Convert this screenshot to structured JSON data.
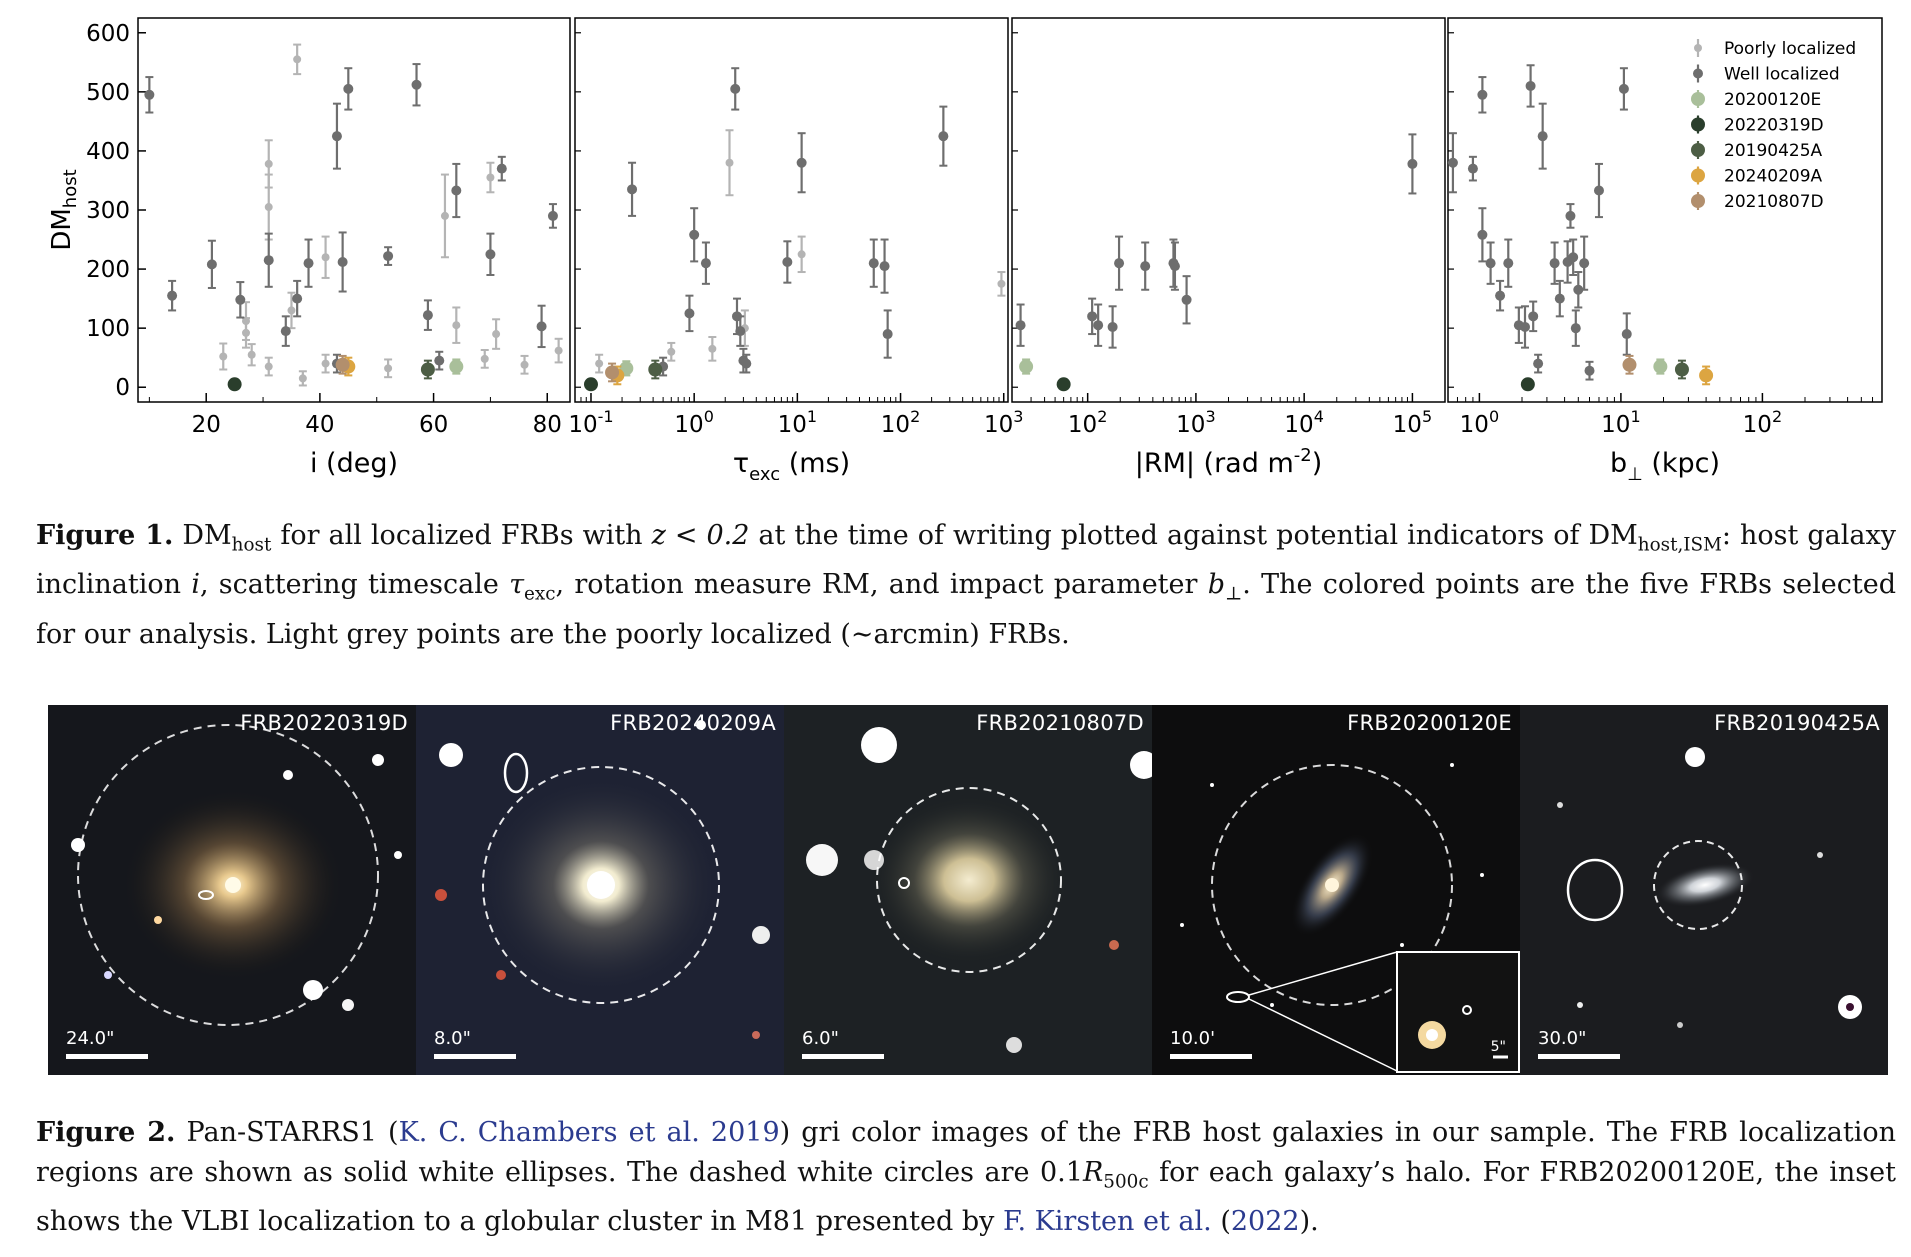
{
  "figure1": {
    "caption_label": "Figure 1.",
    "caption_text_1": "DM",
    "caption_sub_1": "host",
    "caption_text_2": " for all localized FRBs with ",
    "caption_math_1": "z < 0.2",
    "caption_text_3": " at the time of writing plotted against potential indicators of DM",
    "caption_sub_2": "host,ISM",
    "caption_text_4": ": host galaxy inclination ",
    "caption_math_2": "i",
    "caption_text_5": ", scattering timescale ",
    "caption_math_3": "τ",
    "caption_sub_3": "exc",
    "caption_text_6": ", rotation measure RM, and impact parameter ",
    "caption_math_4": "b",
    "caption_sub_4": "⊥",
    "caption_text_7": ". The colored points are the five FRBs selected for our analysis. Light grey points are the poorly localized (∼arcmin) FRBs."
  },
  "figure2": {
    "caption_label": "Figure 2.",
    "caption_text_1": "Pan-STARRS1 (",
    "citation_1": "K. C. Chambers et al. 2019",
    "caption_text_2": ") gri color images of the FRB host galaxies in our sample. The FRB localization regions are shown as solid white ellipses. The dashed white circles are 0.1",
    "caption_math_1": "R",
    "caption_sub_1": "500c",
    "caption_text_3": " for each galaxy’s halo. For FRB20200120E, the inset shows the VLBI localization to a globular cluster in M81 presented by ",
    "citation_2": "F. Kirsten et al.",
    "citation_2_year_open": " (",
    "citation_2_year": "2022",
    "citation_2_year_close": ").",
    "panels": [
      {
        "title": "FRB20220319D",
        "scale": "24.0\""
      },
      {
        "title": "FRB20240209A",
        "scale": "8.0\""
      },
      {
        "title": "FRB20210807D",
        "scale": "6.0\""
      },
      {
        "title": "FRB20200120E",
        "scale": "10.0'",
        "inset_scale": "5\""
      },
      {
        "title": "FRB20190425A",
        "scale": "30.0\""
      }
    ]
  },
  "colors": {
    "poor": "#b4b4b4",
    "well": "#6e6e6e",
    "c20200120E": "#a9bf9a",
    "c20220319D": "#2a3e2c",
    "c20190425A": "#4d5e45",
    "c20240209A": "#dca541",
    "c20210807D": "#b28f6d"
  },
  "chart_data": [
    {
      "type": "scatter",
      "xlabel": "i (deg)",
      "ylabel": "DM_host",
      "xscale": "linear",
      "xlim": [
        8,
        84
      ],
      "ylim": [
        -25,
        625
      ],
      "xticks": [
        20,
        40,
        60,
        80
      ],
      "yticks": [
        0,
        100,
        200,
        300,
        400,
        500,
        600
      ],
      "series": [
        {
          "name": "Poorly localized",
          "points": [
            [
              23,
              52,
              22
            ],
            [
              27,
              92,
              25
            ],
            [
              27,
              112,
              32
            ],
            [
              28,
              55,
              18
            ],
            [
              31,
              35,
              15
            ],
            [
              31,
              305,
              55
            ],
            [
              31,
              378,
              40
            ],
            [
              35,
              130,
              30
            ],
            [
              36,
              555,
              25
            ],
            [
              37,
              15,
              12
            ],
            [
              41,
              220,
              35
            ],
            [
              41,
              40,
              15
            ],
            [
              52,
              32,
              15
            ],
            [
              62,
              290,
              70
            ],
            [
              64,
              105,
              30
            ],
            [
              69,
              48,
              15
            ],
            [
              70,
              355,
              25
            ],
            [
              71,
              90,
              25
            ],
            [
              76,
              38,
              15
            ],
            [
              82,
              62,
              20
            ]
          ]
        },
        {
          "name": "Well localized",
          "points": [
            [
              10,
              495,
              30
            ],
            [
              14,
              155,
              25
            ],
            [
              21,
              208,
              40
            ],
            [
              26,
              148,
              30
            ],
            [
              31,
              215,
              45
            ],
            [
              34,
              95,
              25
            ],
            [
              36,
              150,
              30
            ],
            [
              38,
              210,
              40
            ],
            [
              43,
              425,
              55
            ],
            [
              43,
              40,
              15
            ],
            [
              44,
              212,
              50
            ],
            [
              45,
              505,
              35
            ],
            [
              52,
              222,
              15
            ],
            [
              57,
              512,
              35
            ],
            [
              59,
              122,
              25
            ],
            [
              61,
              45,
              15
            ],
            [
              64,
              333,
              45
            ],
            [
              70,
              225,
              35
            ],
            [
              72,
              370,
              20
            ],
            [
              79,
              103,
              35
            ],
            [
              81,
              290,
              20
            ]
          ]
        },
        {
          "name": "20200120E",
          "points": [
            [
              64,
              35,
              12
            ]
          ]
        },
        {
          "name": "20220319D",
          "points": [
            [
              25,
              5,
              6
            ]
          ]
        },
        {
          "name": "20190425A",
          "points": [
            [
              59,
              30,
              15
            ]
          ]
        },
        {
          "name": "20240209A",
          "points": [
            [
              45,
              35,
              15
            ]
          ]
        },
        {
          "name": "20210807D",
          "points": [
            [
              44,
              38,
              15
            ]
          ]
        }
      ]
    },
    {
      "type": "scatter",
      "xlabel": "τ_exc (ms)",
      "ylabel": "",
      "xscale": "log",
      "xlim": [
        0.07,
        1100
      ],
      "ylim": [
        -25,
        625
      ],
      "xticks": [
        "10^-1",
        "10^0",
        "10^1",
        "10^2",
        "10^3"
      ],
      "series": [
        {
          "name": "Poorly localized",
          "points": [
            [
              0.12,
              40,
              15
            ],
            [
              0.6,
              60,
              15
            ],
            [
              1.5,
              65,
              20
            ],
            [
              2.2,
              380,
              55
            ],
            [
              3.1,
              100,
              30
            ],
            [
              11,
              225,
              30
            ],
            [
              950,
              175,
              20
            ]
          ]
        },
        {
          "name": "Well localized",
          "points": [
            [
              0.25,
              335,
              45
            ],
            [
              0.5,
              35,
              15
            ],
            [
              0.9,
              125,
              30
            ],
            [
              1,
              258,
              45
            ],
            [
              1.3,
              210,
              35
            ],
            [
              2.5,
              505,
              35
            ],
            [
              2.6,
              120,
              30
            ],
            [
              2.8,
              95,
              25
            ],
            [
              3,
              45,
              20
            ],
            [
              3.2,
              40,
              15
            ],
            [
              8,
              212,
              35
            ],
            [
              11,
              380,
              50
            ],
            [
              55,
              210,
              40
            ],
            [
              70,
              205,
              45
            ],
            [
              75,
              90,
              40
            ],
            [
              260,
              425,
              50
            ]
          ]
        },
        {
          "name": "20200120E",
          "points": [
            [
              0.22,
              32,
              12
            ]
          ]
        },
        {
          "name": "20220319D",
          "points": [
            [
              0.1,
              5,
              6
            ]
          ]
        },
        {
          "name": "20190425A",
          "points": [
            [
              0.42,
              30,
              15
            ]
          ]
        },
        {
          "name": "20240209A",
          "points": [
            [
              0.18,
              20,
              15
            ]
          ]
        },
        {
          "name": "20210807D",
          "points": [
            [
              0.16,
              25,
              15
            ]
          ]
        }
      ]
    },
    {
      "type": "scatter",
      "xlabel": "|RM| (rad m^-2)",
      "ylabel": "",
      "xscale": "log",
      "xlim": [
        20,
        200000
      ],
      "ylim": [
        -25,
        625
      ],
      "xticks": [
        "10^2",
        "10^3",
        "10^4",
        "10^5"
      ],
      "series": [
        {
          "name": "Poorly localized",
          "points": []
        },
        {
          "name": "Well localized",
          "points": [
            [
              24,
              105,
              35
            ],
            [
              110,
              120,
              30
            ],
            [
              125,
              105,
              35
            ],
            [
              170,
              102,
              35
            ],
            [
              195,
              210,
              45
            ],
            [
              340,
              205,
              40
            ],
            [
              620,
              210,
              40
            ],
            [
              640,
              205,
              40
            ],
            [
              820,
              148,
              40
            ],
            [
              100000,
              378,
              50
            ]
          ]
        },
        {
          "name": "20200120E",
          "points": [
            [
              27,
              35,
              12
            ]
          ]
        },
        {
          "name": "20220319D",
          "points": [
            [
              60,
              5,
              6
            ]
          ]
        },
        {
          "name": "20190425A",
          "points": []
        },
        {
          "name": "20240209A",
          "points": []
        },
        {
          "name": "20210807D",
          "points": []
        }
      ]
    },
    {
      "type": "scatter",
      "xlabel": "b_⊥ (kpc)",
      "ylabel": "",
      "xscale": "log",
      "xlim": [
        0.6,
        700
      ],
      "ylim": [
        -25,
        625
      ],
      "xticks": [
        "10^0",
        "10^1",
        "10^2"
      ],
      "series": [
        {
          "name": "Poorly localized",
          "points": []
        },
        {
          "name": "Well localized",
          "points": [
            [
              0.65,
              380,
              50
            ],
            [
              0.9,
              370,
              20
            ],
            [
              1.05,
              495,
              30
            ],
            [
              1.05,
              258,
              45
            ],
            [
              1.2,
              210,
              35
            ],
            [
              1.4,
              155,
              25
            ],
            [
              1.6,
              210,
              40
            ],
            [
              1.9,
              105,
              30
            ],
            [
              2.1,
              102,
              35
            ],
            [
              2.3,
              510,
              35
            ],
            [
              2.4,
              120,
              25
            ],
            [
              2.6,
              40,
              15
            ],
            [
              2.8,
              425,
              55
            ],
            [
              3.4,
              210,
              35
            ],
            [
              3.7,
              150,
              30
            ],
            [
              4.2,
              212,
              35
            ],
            [
              4.4,
              290,
              20
            ],
            [
              4.6,
              220,
              30
            ],
            [
              4.8,
              100,
              30
            ],
            [
              5,
              165,
              30
            ],
            [
              5.5,
              210,
              45
            ],
            [
              6,
              28,
              15
            ],
            [
              7,
              333,
              45
            ],
            [
              10.5,
              505,
              35
            ],
            [
              11,
              90,
              35
            ]
          ]
        },
        {
          "name": "20200120E",
          "points": [
            [
              19,
              35,
              12
            ]
          ]
        },
        {
          "name": "20220319D",
          "points": [
            [
              2.2,
              5,
              6
            ]
          ]
        },
        {
          "name": "20190425A",
          "points": [
            [
              27,
              30,
              15
            ]
          ]
        },
        {
          "name": "20240209A",
          "points": [
            [
              40,
              20,
              15
            ]
          ]
        },
        {
          "name": "20210807D",
          "points": [
            [
              11.5,
              38,
              15
            ]
          ]
        }
      ]
    }
  ],
  "legend": {
    "position": "top-right",
    "entries": [
      "Poorly localized",
      "Well localized",
      "20200120E",
      "20220319D",
      "20190425A",
      "20240209A",
      "20210807D"
    ]
  }
}
